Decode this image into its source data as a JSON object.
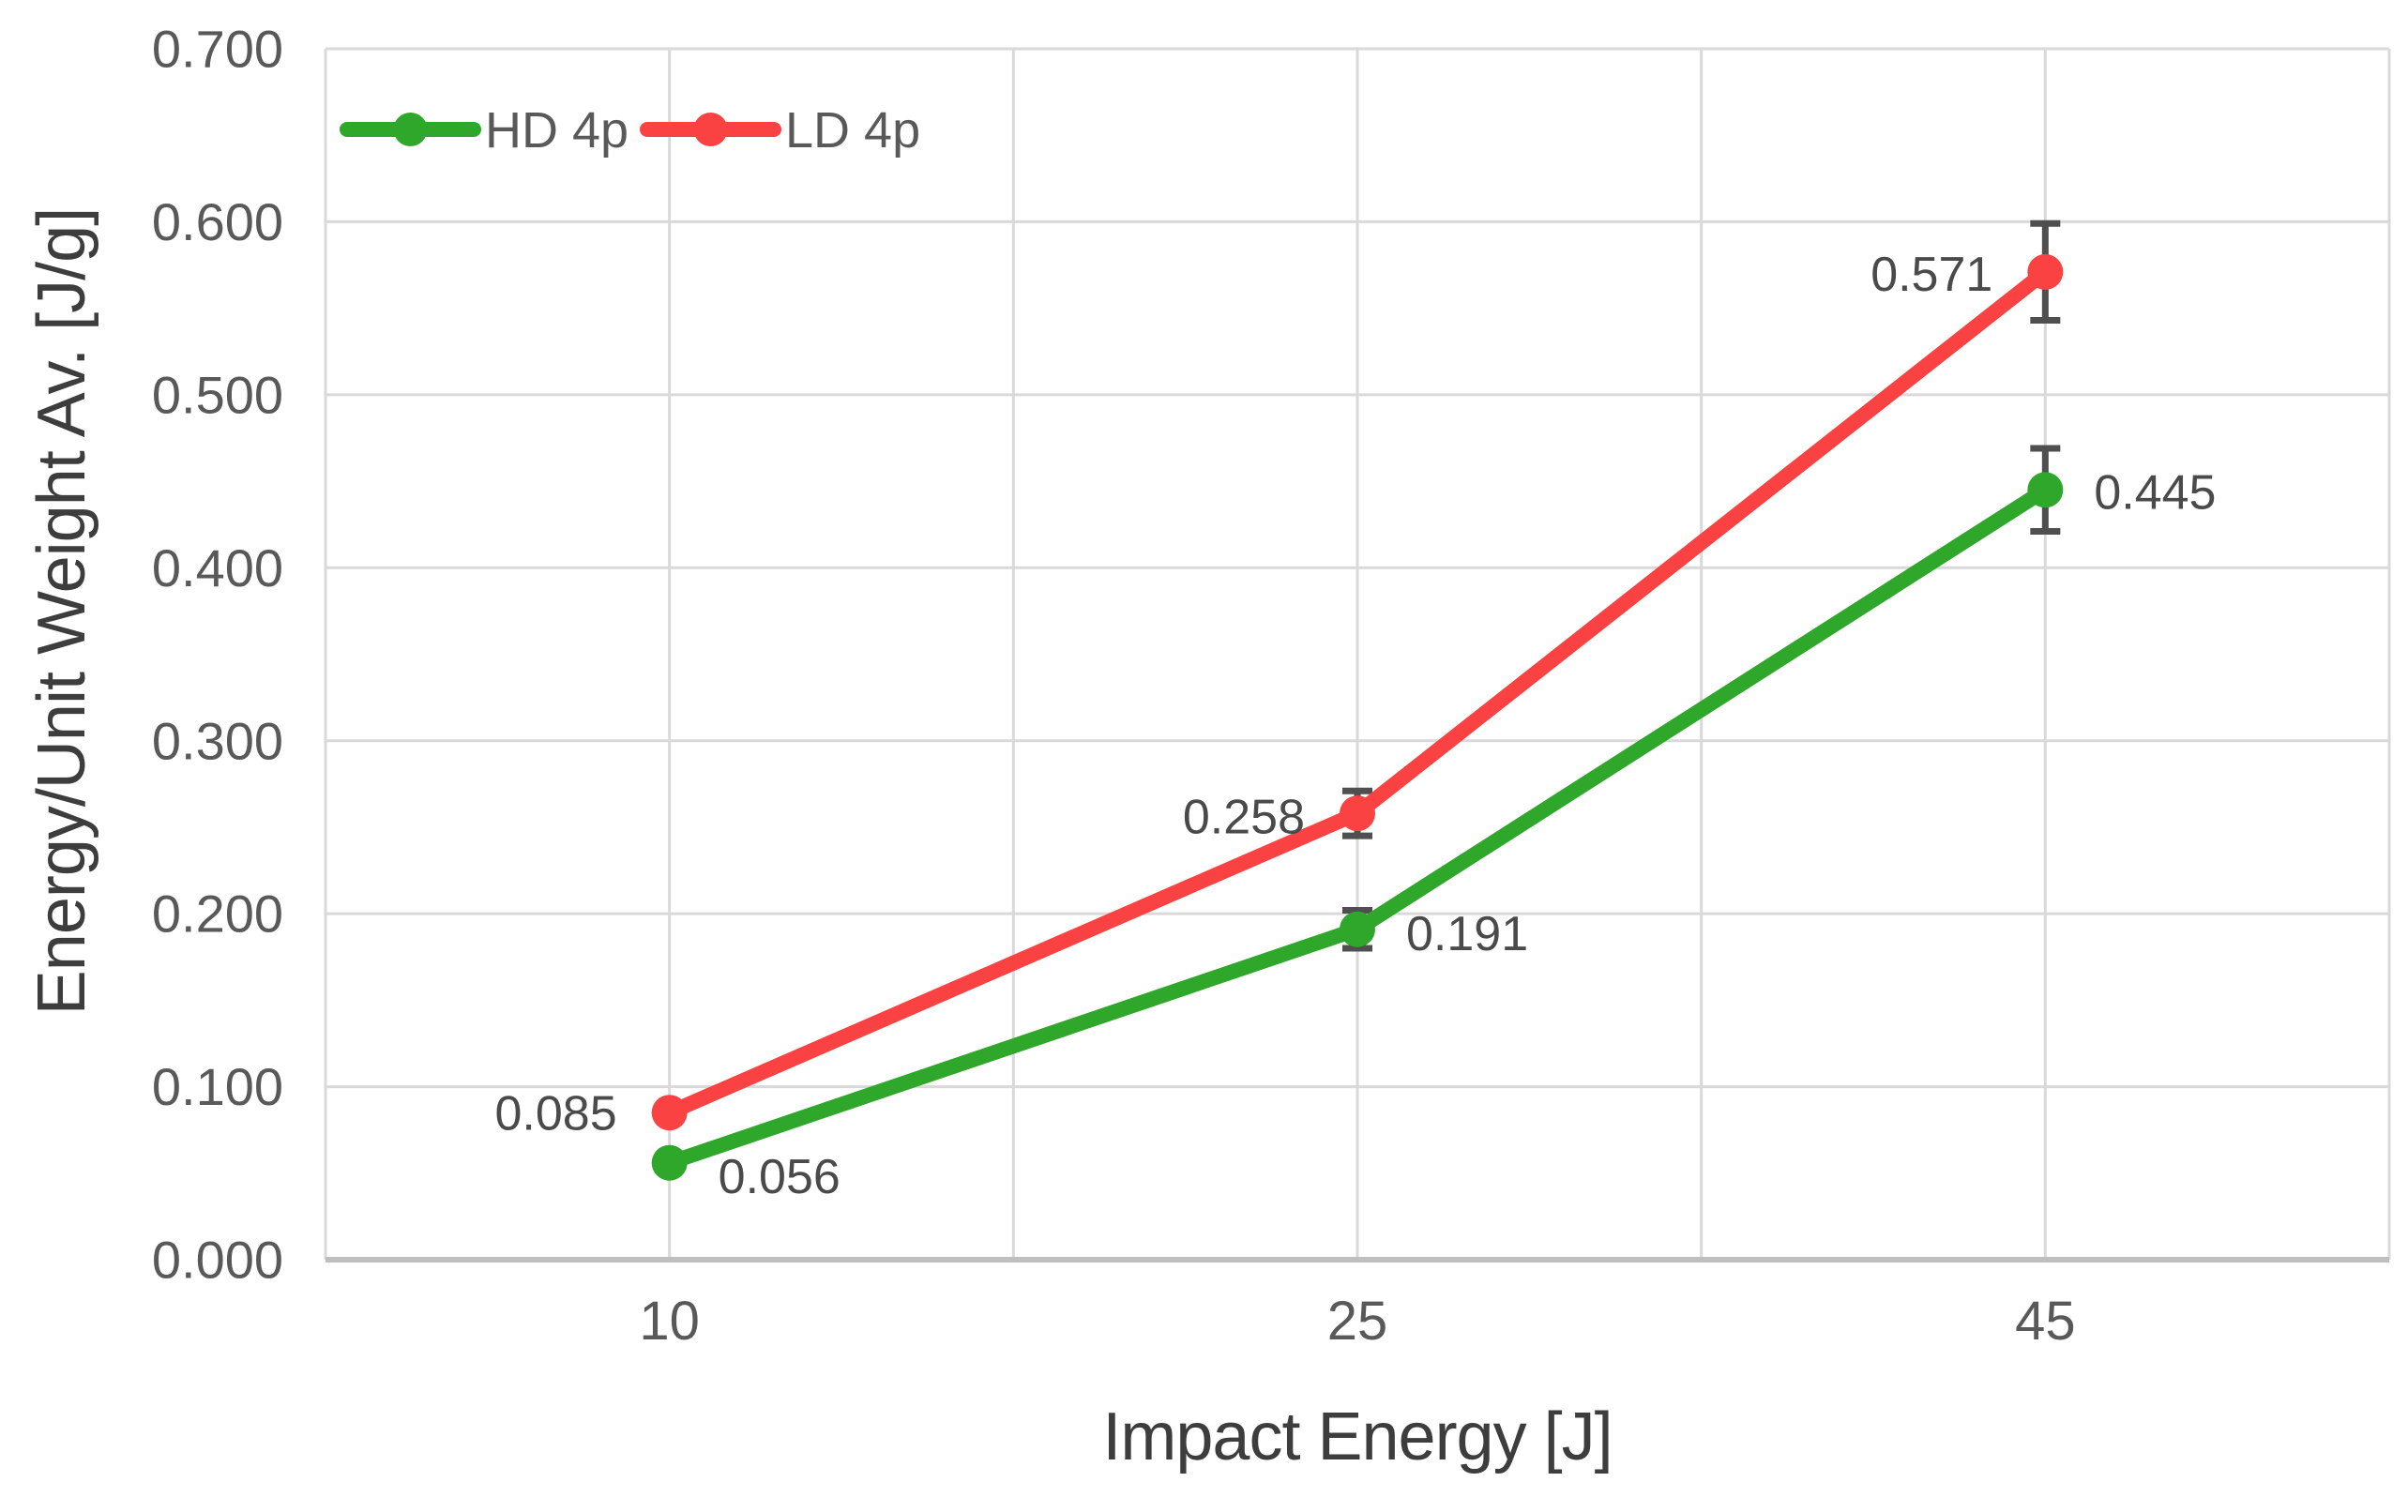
{
  "figure": {
    "background": "#ffffff"
  },
  "chart_data": {
    "type": "line",
    "title": "",
    "xlabel": "Impact Energy [J]",
    "ylabel": "Energy/Unit Weight Av. [J/g]",
    "categories": [
      "10",
      "25",
      "45"
    ],
    "ylim": [
      0.0,
      0.7
    ],
    "y_tick_step": 0.1,
    "y_ticks": [
      "0.000",
      "0.100",
      "0.200",
      "0.300",
      "0.400",
      "0.500",
      "0.600",
      "0.700"
    ],
    "grid": true,
    "legend_position": "top-left-inside",
    "legend_orientation": "horizontal",
    "series": [
      {
        "name": "HD 4p",
        "color": "#2ea72b",
        "marker": "circle",
        "values": [
          0.056,
          0.191,
          0.445
        ],
        "data_labels": [
          "0.056",
          "0.191",
          "0.445"
        ],
        "label_side": "right",
        "label_dy": [
          14,
          4,
          2
        ],
        "errors": [
          null,
          0.011,
          0.024
        ]
      },
      {
        "name": "LD 4p",
        "color": "#fa4242",
        "marker": "circle",
        "values": [
          0.085,
          0.258,
          0.571
        ],
        "data_labels": [
          "0.085",
          "0.258",
          "0.571"
        ],
        "label_side": "left",
        "label_dy": [
          0,
          3,
          2
        ],
        "errors": [
          null,
          0.013,
          0.028
        ]
      }
    ]
  },
  "colors": {
    "grid": "#d9d9d9",
    "axis_line": "#bfbfbf",
    "tick_label": "#595959",
    "data_label": "#4a4a4a",
    "axis_title": "#3d3d3d",
    "error_bar": "#4f4f4f"
  }
}
